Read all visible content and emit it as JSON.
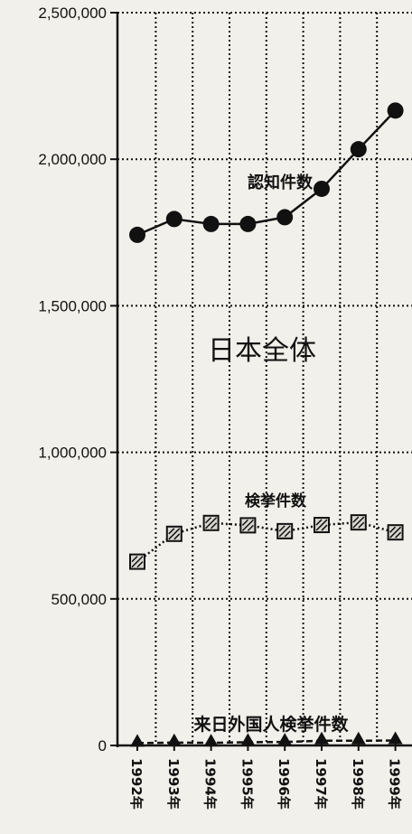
{
  "chart_data": {
    "type": "line",
    "x": [
      "1992年",
      "1993年",
      "1994年",
      "1995年",
      "1996年",
      "1997年",
      "1998年",
      "1999年"
    ],
    "ylim": [
      0,
      2500000
    ],
    "yticks": [
      "0",
      "500,000",
      "1,000,000",
      "1,500,000",
      "2,000,000",
      "2,500,000"
    ],
    "grid": true,
    "series": [
      {
        "name": "認知件数",
        "marker": "circle",
        "line": "solid",
        "values": [
          1742000,
          1796000,
          1779000,
          1779000,
          1802000,
          1899000,
          2034000,
          2166000
        ]
      },
      {
        "name": "検挙件数",
        "marker": "hatched-square",
        "line": "dotted",
        "values": [
          627000,
          722000,
          759000,
          751000,
          731000,
          752000,
          761000,
          727000
        ]
      },
      {
        "name": "来日外国人検挙件数",
        "marker": "triangle",
        "line": "dashed",
        "values": [
          8000,
          10000,
          9000,
          11000,
          12000,
          16000,
          16000,
          17000
        ]
      }
    ],
    "annotations": {
      "center": "日本全体"
    },
    "colors": {
      "ink": "#111111",
      "background": "#f2f0ea"
    }
  }
}
